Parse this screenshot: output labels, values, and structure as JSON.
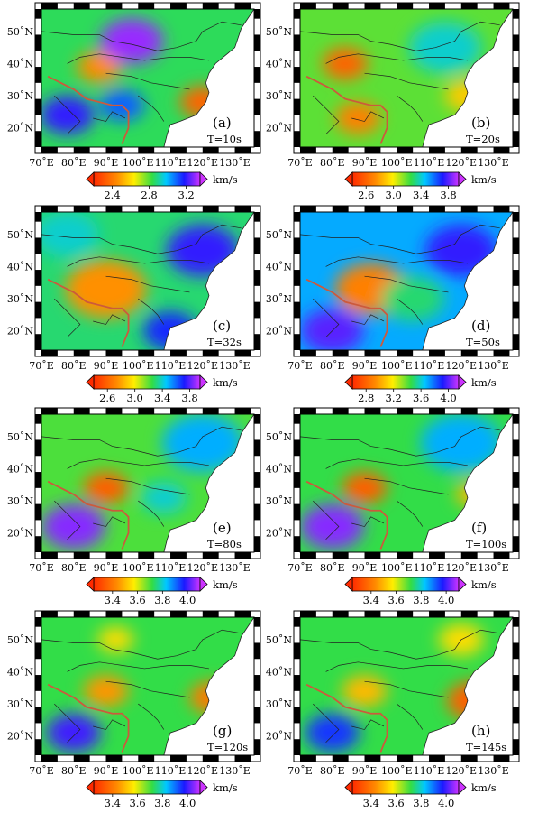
{
  "figure": {
    "lon_ticks": [
      "70˚E",
      "80˚E",
      "90˚E",
      "100˚E",
      "110˚E",
      "120˚E",
      "130˚E"
    ],
    "lat_ticks": [
      "50˚N",
      "40˚N",
      "30˚N",
      "20˚N"
    ],
    "unit": "km/s",
    "colors": {
      "low": "#ff2a00",
      "mid_low": "#ffee00",
      "mid": "#33dd44",
      "mid_high": "#00c8ff",
      "high": "#1a1aff",
      "top": "#cc33ff",
      "plate_boundary": "#cc5a3c",
      "border_lines": "#222222"
    },
    "panels": [
      {
        "tag": "(a)",
        "period": "T=10s",
        "ticks": [
          "2.4",
          "2.8",
          "3.2"
        ],
        "vmin": 2.2,
        "vmax": 3.35,
        "tickvals": [
          2.4,
          2.8,
          3.2
        ],
        "anomalies": [
          {
            "lon": 88,
            "lat": 39,
            "v": 2.45,
            "r": 5
          },
          {
            "lon": 120,
            "lat": 28,
            "v": 2.35,
            "r": 5
          },
          {
            "lon": 98,
            "lat": 47,
            "v": 3.3,
            "r": 7
          },
          {
            "lon": 78,
            "lat": 24,
            "v": 3.2,
            "r": 6
          },
          {
            "lon": 95,
            "lat": 27,
            "v": 3.1,
            "r": 5
          }
        ],
        "base": 2.85
      },
      {
        "tag": "(b)",
        "period": "T=20s",
        "ticks": [
          "2.6",
          "3.0",
          "3.4",
          "3.8"
        ],
        "vmin": 2.4,
        "vmax": 3.95,
        "tickvals": [
          2.6,
          3.0,
          3.4,
          3.8
        ],
        "anomalies": [
          {
            "lon": 84,
            "lat": 40,
            "v": 2.6,
            "r": 5
          },
          {
            "lon": 88,
            "lat": 23,
            "v": 2.7,
            "r": 5
          },
          {
            "lon": 122,
            "lat": 30,
            "v": 2.9,
            "r": 5
          },
          {
            "lon": 115,
            "lat": 45,
            "v": 3.4,
            "r": 8
          }
        ],
        "base": 3.2
      },
      {
        "tag": "(c)",
        "period": "T=32s",
        "ticks": [
          "2.6",
          "3.0",
          "3.4",
          "3.8"
        ],
        "vmin": 2.4,
        "vmax": 3.95,
        "tickvals": [
          2.6,
          3.0,
          3.4,
          3.8
        ],
        "anomalies": [
          {
            "lon": 90,
            "lat": 33,
            "v": 2.75,
            "r": 9
          },
          {
            "lon": 120,
            "lat": 45,
            "v": 3.75,
            "r": 8
          },
          {
            "lon": 110,
            "lat": 20,
            "v": 3.7,
            "r": 6
          },
          {
            "lon": 78,
            "lat": 50,
            "v": 3.4,
            "r": 7
          }
        ],
        "base": 3.3
      },
      {
        "tag": "(d)",
        "period": "T=50s",
        "ticks": [
          "2.8",
          "3.2",
          "3.6",
          "4.0"
        ],
        "vmin": 2.6,
        "vmax": 4.15,
        "tickvals": [
          2.8,
          3.2,
          3.6,
          4.0
        ],
        "anomalies": [
          {
            "lon": 92,
            "lat": 33,
            "v": 2.9,
            "r": 8
          },
          {
            "lon": 80,
            "lat": 20,
            "v": 4.0,
            "r": 7
          },
          {
            "lon": 120,
            "lat": 45,
            "v": 3.95,
            "r": 8
          },
          {
            "lon": 105,
            "lat": 30,
            "v": 3.5,
            "r": 7
          }
        ],
        "base": 3.7
      },
      {
        "tag": "(e)",
        "period": "T=80s",
        "ticks": [
          "3.4",
          "3.6",
          "3.8",
          "4.0"
        ],
        "vmin": 3.25,
        "vmax": 4.1,
        "tickvals": [
          3.4,
          3.6,
          3.8,
          4.0
        ],
        "anomalies": [
          {
            "lon": 90,
            "lat": 34,
            "v": 3.35,
            "r": 5
          },
          {
            "lon": 80,
            "lat": 22,
            "v": 4.05,
            "r": 7
          },
          {
            "lon": 120,
            "lat": 48,
            "v": 3.85,
            "r": 9
          },
          {
            "lon": 108,
            "lat": 31,
            "v": 3.8,
            "r": 5
          }
        ],
        "base": 3.7
      },
      {
        "tag": "(f)",
        "period": "T=100s",
        "ticks": [
          "3.4",
          "3.6",
          "3.8",
          "4.0"
        ],
        "vmin": 3.25,
        "vmax": 4.1,
        "tickvals": [
          3.4,
          3.6,
          3.8,
          4.0
        ],
        "anomalies": [
          {
            "lon": 90,
            "lat": 34,
            "v": 3.35,
            "r": 5
          },
          {
            "lon": 80,
            "lat": 22,
            "v": 4.05,
            "r": 7
          },
          {
            "lon": 120,
            "lat": 48,
            "v": 3.85,
            "r": 9
          },
          {
            "lon": 124,
            "lat": 32,
            "v": 3.5,
            "r": 4
          }
        ],
        "base": 3.72
      },
      {
        "tag": "(g)",
        "period": "T=120s",
        "ticks": [
          "3.4",
          "3.6",
          "3.8",
          "4.0"
        ],
        "vmin": 3.25,
        "vmax": 4.1,
        "tickvals": [
          3.4,
          3.6,
          3.8,
          4.0
        ],
        "anomalies": [
          {
            "lon": 90,
            "lat": 34,
            "v": 3.45,
            "r": 5
          },
          {
            "lon": 80,
            "lat": 21,
            "v": 4.0,
            "r": 6
          },
          {
            "lon": 123,
            "lat": 32,
            "v": 3.4,
            "r": 5
          },
          {
            "lon": 93,
            "lat": 50,
            "v": 3.55,
            "r": 4
          }
        ],
        "base": 3.72
      },
      {
        "tag": "(h)",
        "period": "T=145s",
        "ticks": [
          "3.4",
          "3.6",
          "3.8",
          "4.0"
        ],
        "vmin": 3.25,
        "vmax": 4.1,
        "tickvals": [
          3.4,
          3.6,
          3.8,
          4.0
        ],
        "anomalies": [
          {
            "lon": 90,
            "lat": 34,
            "v": 3.5,
            "r": 5
          },
          {
            "lon": 80,
            "lat": 21,
            "v": 3.95,
            "r": 6
          },
          {
            "lon": 124,
            "lat": 31,
            "v": 3.35,
            "r": 6
          },
          {
            "lon": 120,
            "lat": 50,
            "v": 3.55,
            "r": 5
          }
        ],
        "base": 3.72
      }
    ]
  }
}
